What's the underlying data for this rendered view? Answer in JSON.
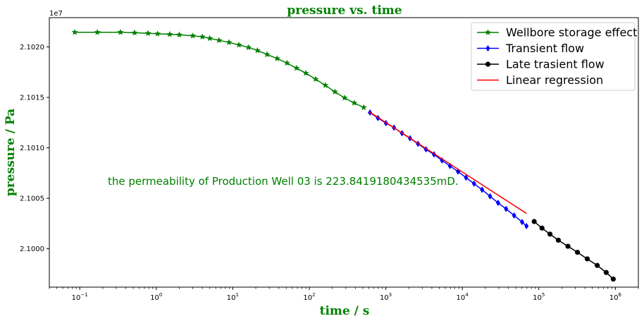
{
  "chart_data": {
    "type": "line",
    "title": "pressure vs. time",
    "xlabel": "time / s",
    "ylabel": "pressure / Pa",
    "x_scale": "log",
    "xlim": [
      0.04,
      2000000
    ],
    "ylim": [
      20996200,
      21022900
    ],
    "y_offset_label": "1e7",
    "x_ticks": [
      {
        "value": 0.1,
        "base": "10",
        "exp": "−1"
      },
      {
        "value": 1,
        "base": "10",
        "exp": "0"
      },
      {
        "value": 10,
        "base": "10",
        "exp": "1"
      },
      {
        "value": 100,
        "base": "10",
        "exp": "2"
      },
      {
        "value": 1000,
        "base": "10",
        "exp": "3"
      },
      {
        "value": 10000,
        "base": "10",
        "exp": "4"
      },
      {
        "value": 100000,
        "base": "10",
        "exp": "5"
      },
      {
        "value": 1000000,
        "base": "10",
        "exp": "6"
      }
    ],
    "y_ticks": [
      {
        "value": 21000000,
        "label": "2.1000"
      },
      {
        "value": 21005000,
        "label": "2.1005"
      },
      {
        "value": 21010000,
        "label": "2.1010"
      },
      {
        "value": 21015000,
        "label": "2.1015"
      },
      {
        "value": 21020000,
        "label": "2.1020"
      }
    ],
    "annotation": "the permeability of Production Well 03 is 223.8419180434535mD.",
    "legend_position": "top-right",
    "series": [
      {
        "name": "Wellbore storage effect",
        "color": "#008000",
        "marker": "star",
        "x": [
          0.086,
          0.17,
          0.34,
          0.52,
          0.78,
          1.04,
          1.5,
          2.0,
          3.0,
          4.0,
          5.0,
          6.6,
          8.9,
          12,
          16,
          21,
          28,
          38,
          51,
          68,
          90,
          121,
          162,
          216,
          289,
          386,
          515
        ],
        "y": [
          21021450,
          21021450,
          21021450,
          21021400,
          21021350,
          21021300,
          21021250,
          21021200,
          21021100,
          21021000,
          21020850,
          21020650,
          21020450,
          21020200,
          21019950,
          21019650,
          21019250,
          21018850,
          21018400,
          21017900,
          21017400,
          21016800,
          21016200,
          21015550,
          21014950,
          21014450,
          21014000
        ]
      },
      {
        "name": "Transient flow",
        "color": "#0000ff",
        "marker": "diamond",
        "x": [
          621,
          790,
          1005,
          1279,
          1628,
          2071,
          2636,
          3354,
          4268,
          5431,
          6911,
          8795,
          11192,
          14242,
          18123,
          23062,
          29347,
          37344,
          47522,
          60472,
          69000
        ],
        "y": [
          21013500,
          21012950,
          21012450,
          21012000,
          21011450,
          21010950,
          21010400,
          21009850,
          21009350,
          21008750,
          21008200,
          21007650,
          21007050,
          21006450,
          21005850,
          21005200,
          21004550,
          21003950,
          21003300,
          21002650,
          21002250
        ]
      },
      {
        "name": "Late trasient flow",
        "color": "#000000",
        "marker": "circle",
        "x": [
          87000,
          110000,
          140000,
          180000,
          240000,
          320000,
          430000,
          580000,
          760000,
          940000
        ],
        "y": [
          21002700,
          21002050,
          21001450,
          21000850,
          21000250,
          20999650,
          20999000,
          20998350,
          20997650,
          20997000
        ]
      },
      {
        "name": "Linear regression",
        "color": "#ff0000",
        "marker": "none",
        "x": [
          600,
          69000
        ],
        "y": [
          21013600,
          21003500
        ]
      }
    ]
  }
}
